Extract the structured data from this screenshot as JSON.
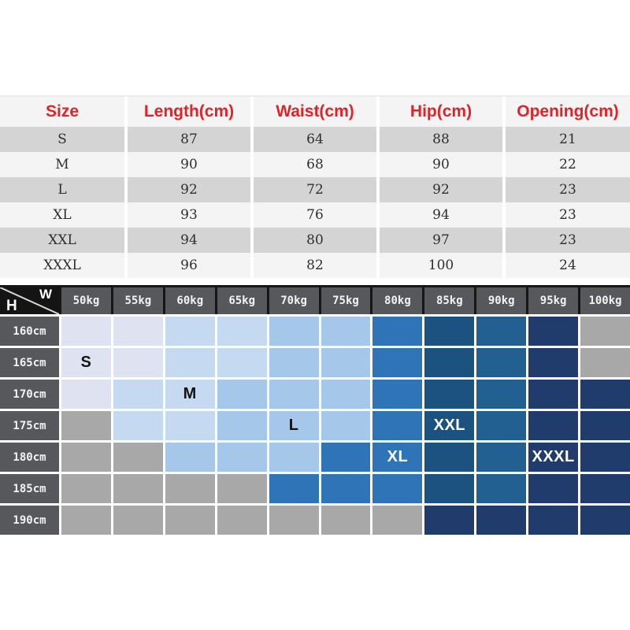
{
  "accent_colors": {
    "table_header_text": "#e32227",
    "table_row_gray": "#d4d4d5",
    "table_row_light": "#f4f4f5",
    "matrix_header_bg": "#57585b",
    "matrix_corner_bg": "#141414"
  },
  "matrix": {
    "corner_top": "W",
    "corner_bottom": "H"
  },
  "chart_data": [
    {
      "type": "table",
      "columns": [
        "Size",
        "Length(cm)",
        "Waist(cm)",
        "Hip(cm)",
        "Opening(cm)"
      ],
      "rows": [
        [
          "S",
          87,
          64,
          88,
          21
        ],
        [
          "M",
          90,
          68,
          90,
          22
        ],
        [
          "L",
          92,
          72,
          92,
          23
        ],
        [
          "XL",
          93,
          76,
          94,
          23
        ],
        [
          "XXL",
          94,
          80,
          97,
          23
        ],
        [
          "XXXL",
          96,
          82,
          100,
          24
        ]
      ]
    },
    {
      "type": "heatmap",
      "xlabel": "W (weight)",
      "ylabel": "H (height)",
      "x": [
        "50kg",
        "55kg",
        "60kg",
        "65kg",
        "70kg",
        "75kg",
        "80kg",
        "85kg",
        "90kg",
        "95kg",
        "100kg"
      ],
      "y": [
        "160cm",
        "165cm",
        "170cm",
        "175cm",
        "180cm",
        "185cm",
        "190cm"
      ],
      "tier_colors": {
        "p": "#dfe2f0",
        "l": "#c5daf0",
        "m": "#a4c7ea",
        "b": "#2e74b6",
        "d": "#1c5280",
        "e": "#216090",
        "n": "#1f3c6d",
        "g": "#a8a8a8"
      },
      "cell_tiers": [
        [
          "p",
          "p",
          "l",
          "l",
          "m",
          "m",
          "b",
          "d",
          "e",
          "n",
          "g"
        ],
        [
          "p",
          "p",
          "l",
          "l",
          "m",
          "m",
          "b",
          "d",
          "e",
          "n",
          "g"
        ],
        [
          "p",
          "l",
          "l",
          "m",
          "m",
          "m",
          "b",
          "d",
          "e",
          "n",
          "n"
        ],
        [
          "g",
          "l",
          "l",
          "m",
          "m",
          "m",
          "b",
          "d",
          "e",
          "n",
          "n"
        ],
        [
          "g",
          "g",
          "m",
          "m",
          "m",
          "b",
          "b",
          "d",
          "e",
          "n",
          "n"
        ],
        [
          "g",
          "g",
          "g",
          "g",
          "b",
          "b",
          "b",
          "d",
          "e",
          "n",
          "n"
        ],
        [
          "g",
          "g",
          "g",
          "g",
          "g",
          "g",
          "g",
          "n",
          "n",
          "n",
          "n"
        ]
      ],
      "annotations": [
        {
          "text": "S",
          "row": 1,
          "col": 0,
          "color": "#141414"
        },
        {
          "text": "M",
          "row": 2,
          "col": 2,
          "color": "#141414"
        },
        {
          "text": "L",
          "row": 3,
          "col": 4,
          "color": "#141414"
        },
        {
          "text": "XXL",
          "row": 3,
          "col": 7,
          "color": "#ffffff"
        },
        {
          "text": "XL",
          "row": 4,
          "col": 6,
          "color": "#ffffff"
        },
        {
          "text": "XXXL",
          "row": 4,
          "col": 9,
          "color": "#ffffff"
        }
      ]
    }
  ]
}
